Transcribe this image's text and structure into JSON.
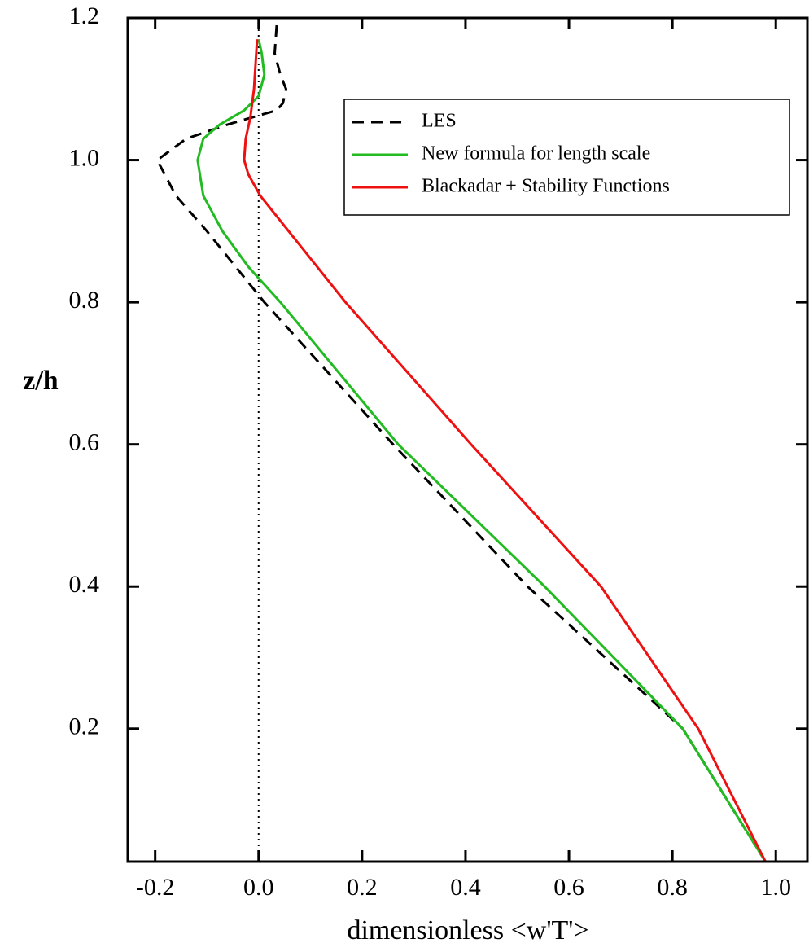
{
  "chart_data": {
    "type": "line",
    "x_label": "dimensionless <w'T'>",
    "y_label": "z/h",
    "xlim": [
      -0.253,
      1.061
    ],
    "ylim": [
      0.013,
      1.2
    ],
    "xticks": [
      -0.2,
      {
        "value": 0,
        "label": "0.0"
      },
      0.2,
      0.4,
      0.6,
      0.8,
      {
        "value": 1,
        "label": "1.0"
      }
    ],
    "yticks": [
      0.2,
      0.4,
      0.6,
      0.8,
      {
        "value": 1,
        "label": "1.0"
      },
      1.2
    ],
    "vline": 0,
    "legend": "upper right",
    "series": [
      {
        "name": "LES",
        "color": "#000000",
        "dash": true,
        "x": [
          0.98,
          0.82,
          0.52,
          0.26,
          0.011,
          -0.1,
          -0.16,
          -0.196,
          -0.14,
          -0.06,
          0.035,
          0.047,
          0.053,
          0.042,
          0.031,
          0.035
        ],
        "y": [
          0.013,
          0.2,
          0.4,
          0.6,
          0.8,
          0.9,
          0.95,
          1.0,
          1.03,
          1.05,
          1.07,
          1.08,
          1.1,
          1.12,
          1.15,
          1.19
        ]
      },
      {
        "name": "New formula for length scale",
        "color": "#22bb22",
        "dash": false,
        "x": [
          0.98,
          0.82,
          0.553,
          0.27,
          0.042,
          -0.02,
          -0.07,
          -0.107,
          -0.118,
          -0.107,
          -0.075,
          -0.028,
          0.0,
          0.011,
          0.006,
          0.0
        ],
        "y": [
          0.013,
          0.2,
          0.4,
          0.6,
          0.8,
          0.85,
          0.9,
          0.95,
          1.0,
          1.03,
          1.05,
          1.07,
          1.09,
          1.12,
          1.15,
          1.17
        ]
      },
      {
        "name": "Blackadar + Stability Functions",
        "color": "#ee1111",
        "dash": false,
        "x": [
          0.98,
          0.85,
          0.662,
          0.411,
          0.168,
          0.058,
          0.003,
          -0.02,
          -0.028,
          -0.025,
          -0.016,
          -0.009,
          -0.003
        ],
        "y": [
          0.013,
          0.2,
          0.4,
          0.6,
          0.8,
          0.9,
          0.95,
          0.98,
          1.0,
          1.03,
          1.06,
          1.1,
          1.17
        ]
      }
    ]
  }
}
